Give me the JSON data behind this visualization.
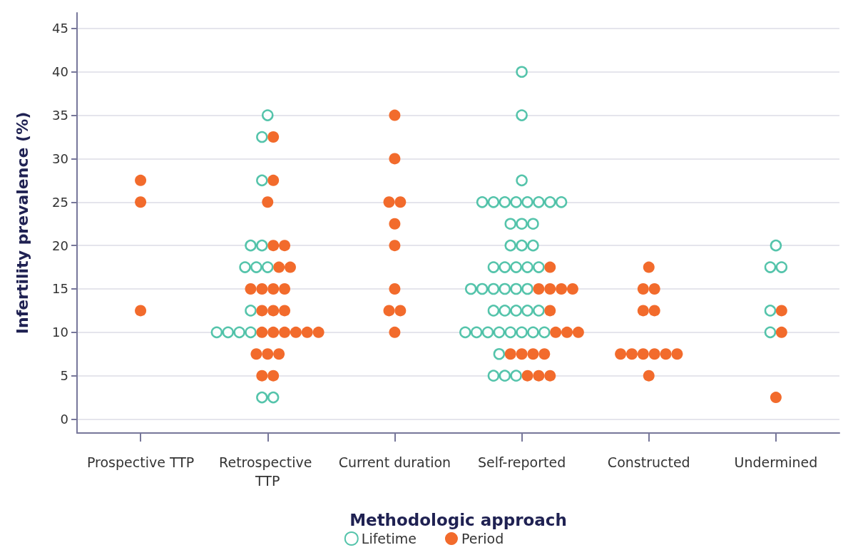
{
  "chart_data": {
    "type": "scatter",
    "xlabel": "Methodologic approach",
    "ylabel": "Infertility prevalence (%)",
    "categories": [
      "Prospective TTP",
      "Retrospective TTP",
      "Current duration",
      "Self-reported",
      "Constructed",
      "Undermined"
    ],
    "series": [
      {
        "name": "Lifetime",
        "color": "#2ab596",
        "x": [
          "Retrospective TTP",
          "Retrospective TTP",
          "Retrospective TTP",
          "Retrospective TTP",
          "Retrospective TTP",
          "Retrospective TTP",
          "Retrospective TTP",
          "Retrospective TTP",
          "Retrospective TTP",
          "Retrospective TTP",
          "Retrospective TTP",
          "Retrospective TTP",
          "Retrospective TTP",
          "Retrospective TTP",
          "Retrospective TTP",
          "Self-reported",
          "Self-reported",
          "Self-reported",
          "Self-reported",
          "Self-reported",
          "Self-reported",
          "Self-reported",
          "Self-reported",
          "Self-reported",
          "Self-reported",
          "Self-reported",
          "Self-reported",
          "Self-reported",
          "Self-reported",
          "Self-reported",
          "Self-reported",
          "Self-reported",
          "Self-reported",
          "Self-reported",
          "Self-reported",
          "Self-reported",
          "Self-reported",
          "Self-reported",
          "Self-reported",
          "Self-reported",
          "Self-reported",
          "Self-reported",
          "Self-reported",
          "Self-reported",
          "Self-reported",
          "Self-reported",
          "Self-reported",
          "Self-reported",
          "Self-reported",
          "Self-reported",
          "Self-reported",
          "Self-reported",
          "Self-reported",
          "Self-reported",
          "Self-reported",
          "Self-reported",
          "Self-reported",
          "Self-reported",
          "Self-reported",
          "Self-reported",
          "Undermined",
          "Undermined",
          "Undermined",
          "Undermined",
          "Undermined"
        ],
        "values": [
          35,
          32.5,
          27.5,
          20,
          20,
          17.5,
          17.5,
          17.5,
          12.5,
          10,
          10,
          10,
          10,
          2.5,
          2.5,
          40,
          35,
          27.5,
          25,
          25,
          25,
          25,
          25,
          25,
          25,
          25,
          22.5,
          22.5,
          22.5,
          20,
          20,
          20,
          17.5,
          17.5,
          17.5,
          17.5,
          17.5,
          15,
          15,
          15,
          15,
          15,
          15,
          12.5,
          12.5,
          12.5,
          12.5,
          12.5,
          10,
          10,
          10,
          10,
          10,
          10,
          10,
          10,
          7.5,
          5,
          5,
          5,
          20,
          17.5,
          17.5,
          12.5,
          10
        ]
      },
      {
        "name": "Period",
        "color": "#f26b2c",
        "x": [
          "Prospective TTP",
          "Prospective TTP",
          "Prospective TTP",
          "Retrospective TTP",
          "Retrospective TTP",
          "Retrospective TTP",
          "Retrospective TTP",
          "Retrospective TTP",
          "Retrospective TTP",
          "Retrospective TTP",
          "Retrospective TTP",
          "Retrospective TTP",
          "Retrospective TTP",
          "Retrospective TTP",
          "Retrospective TTP",
          "Retrospective TTP",
          "Retrospective TTP",
          "Retrospective TTP",
          "Retrospective TTP",
          "Retrospective TTP",
          "Retrospective TTP",
          "Retrospective TTP",
          "Retrospective TTP",
          "Retrospective TTP",
          "Retrospective TTP",
          "Retrospective TTP",
          "Retrospective TTP",
          "Retrospective TTP",
          "Current duration",
          "Current duration",
          "Current duration",
          "Current duration",
          "Current duration",
          "Current duration",
          "Current duration",
          "Current duration",
          "Current duration",
          "Current duration",
          "Self-reported",
          "Self-reported",
          "Self-reported",
          "Self-reported",
          "Self-reported",
          "Self-reported",
          "Self-reported",
          "Self-reported",
          "Self-reported",
          "Self-reported",
          "Self-reported",
          "Self-reported",
          "Self-reported",
          "Self-reported",
          "Self-reported",
          "Self-reported",
          "Constructed",
          "Constructed",
          "Constructed",
          "Constructed",
          "Constructed",
          "Constructed",
          "Constructed",
          "Constructed",
          "Constructed",
          "Constructed",
          "Constructed",
          "Constructed",
          "Undermined",
          "Undermined",
          "Undermined"
        ],
        "values": [
          27.5,
          25,
          12.5,
          32.5,
          27.5,
          25,
          20,
          20,
          17.5,
          17.5,
          15,
          15,
          15,
          15,
          12.5,
          12.5,
          12.5,
          10,
          10,
          10,
          10,
          10,
          10,
          7.5,
          7.5,
          7.5,
          5,
          5,
          35,
          30,
          25,
          25,
          22.5,
          20,
          15,
          12.5,
          12.5,
          10,
          17.5,
          15,
          15,
          15,
          15,
          12.5,
          10,
          10,
          10,
          7.5,
          7.5,
          7.5,
          7.5,
          5,
          5,
          5,
          17.5,
          15,
          15,
          12.5,
          12.5,
          7.5,
          7.5,
          7.5,
          7.5,
          7.5,
          7.5,
          5,
          12.5,
          10,
          2.5
        ]
      }
    ],
    "marker": "circle",
    "ylim": [
      -1.6,
      46.8
    ],
    "yticks": [
      0,
      5,
      10,
      15,
      20,
      25,
      30,
      35,
      40,
      45
    ],
    "grid": "y",
    "legend": "bottom"
  }
}
